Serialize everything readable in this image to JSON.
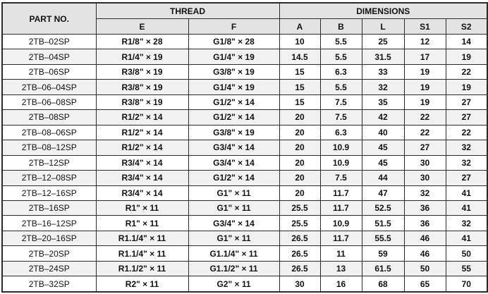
{
  "headers": {
    "part_no": "PART NO.",
    "thread": "THREAD",
    "dimensions": "DIMENSIONS",
    "sub": [
      "E",
      "F",
      "A",
      "B",
      "L",
      "S1",
      "S2"
    ]
  },
  "rows": [
    [
      "2TB–02SP",
      "R1/8\" × 28",
      "G1/8\" × 28",
      "10",
      "5.5",
      "25",
      "12",
      "14"
    ],
    [
      "2TB–04SP",
      "R1/4\" × 19",
      "G1/4\" × 19",
      "14.5",
      "5.5",
      "31.5",
      "17",
      "19"
    ],
    [
      "2TB–06SP",
      "R3/8\" × 19",
      "G3/8\" × 19",
      "15",
      "6.3",
      "33",
      "19",
      "22"
    ],
    [
      "2TB–06–04SP",
      "R3/8\" × 19",
      "G1/4\" × 19",
      "15",
      "5.5",
      "32",
      "19",
      "19"
    ],
    [
      "2TB–06–08SP",
      "R3/8\" × 19",
      "G1/2\" × 14",
      "15",
      "7.5",
      "35",
      "19",
      "27"
    ],
    [
      "2TB–08SP",
      "R1/2\" × 14",
      "G1/2\" × 14",
      "20",
      "7.5",
      "42",
      "22",
      "27"
    ],
    [
      "2TB–08–06SP",
      "R1/2\" × 14",
      "G3/8\" × 19",
      "20",
      "6.3",
      "40",
      "22",
      "22"
    ],
    [
      "2TB–08–12SP",
      "R1/2\" × 14",
      "G3/4\" × 14",
      "20",
      "10.9",
      "45",
      "27",
      "32"
    ],
    [
      "2TB–12SP",
      "R3/4\" × 14",
      "G3/4\" × 14",
      "20",
      "10.9",
      "45",
      "30",
      "32"
    ],
    [
      "2TB–12–08SP",
      "R3/4\" × 14",
      "G1/2\" × 14",
      "20",
      "7.5",
      "44",
      "30",
      "27"
    ],
    [
      "2TB–12–16SP",
      "R3/4\" × 14",
      "G1\" × 11",
      "20",
      "11.7",
      "47",
      "32",
      "41"
    ],
    [
      "2TB–16SP",
      "R1\" × 11",
      "G1\" × 11",
      "25.5",
      "11.7",
      "52.5",
      "36",
      "41"
    ],
    [
      "2TB–16–12SP",
      "R1\" × 11",
      "G3/4\" × 14",
      "25.5",
      "10.9",
      "51.5",
      "36",
      "32"
    ],
    [
      "2TB–20–16SP",
      "R1.1/4\" × 11",
      "G1\" × 11",
      "26.5",
      "11.7",
      "55.5",
      "46",
      "41"
    ],
    [
      "2TB–20SP",
      "R1.1/4\" × 11",
      "G1.1/4\" × 11",
      "26.5",
      "11",
      "59",
      "46",
      "50"
    ],
    [
      "2TB–24SP",
      "R1.1/2\" × 11",
      "G1.1/2\" × 11",
      "26.5",
      "13",
      "61.5",
      "50",
      "55"
    ],
    [
      "2TB–32SP",
      "R2\" × 11",
      "G2\" × 11",
      "30",
      "16",
      "68",
      "65",
      "70"
    ]
  ]
}
